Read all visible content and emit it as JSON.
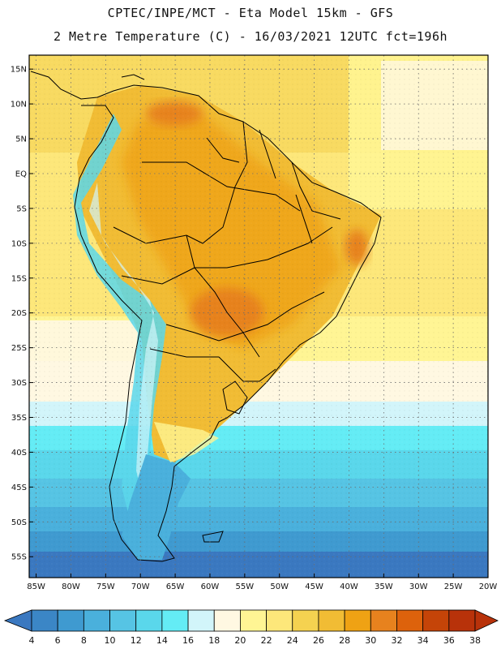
{
  "header": {
    "line1": "CPTEC/INPE/MCT -  Eta Model 15km - GFS",
    "line2": "2 Metre Temperature (C) - 16/03/2021 12UTC fct=196h"
  },
  "map": {
    "lat_labels": [
      "15N",
      "10N",
      "5N",
      "EQ",
      "5S",
      "10S",
      "15S",
      "20S",
      "25S",
      "30S",
      "35S",
      "40S",
      "45S",
      "50S",
      "55S"
    ],
    "lon_labels": [
      "85W",
      "80W",
      "75W",
      "70W",
      "65W",
      "60W",
      "55W",
      "50W",
      "45W",
      "40W",
      "35W",
      "30W",
      "25W",
      "20W"
    ],
    "lat_range": [
      17,
      -58
    ],
    "lon_range": [
      -86,
      -20
    ]
  },
  "colorbar": {
    "labels": [
      "4",
      "6",
      "8",
      "10",
      "12",
      "14",
      "16",
      "18",
      "20",
      "22",
      "24",
      "26",
      "28",
      "30",
      "32",
      "34",
      "36",
      "38"
    ],
    "colors": [
      "#3a78c0",
      "#3b86c6",
      "#3f9ad0",
      "#4ab0dc",
      "#56c4e4",
      "#5ad7eb",
      "#64ecf5",
      "#d2f5fa",
      "#fff8e2",
      "#fff594",
      "#fde77a",
      "#f5d250",
      "#f1bc34",
      "#efa214",
      "#e7821e",
      "#dd620c",
      "#c54408",
      "#b8320a"
    ]
  }
}
